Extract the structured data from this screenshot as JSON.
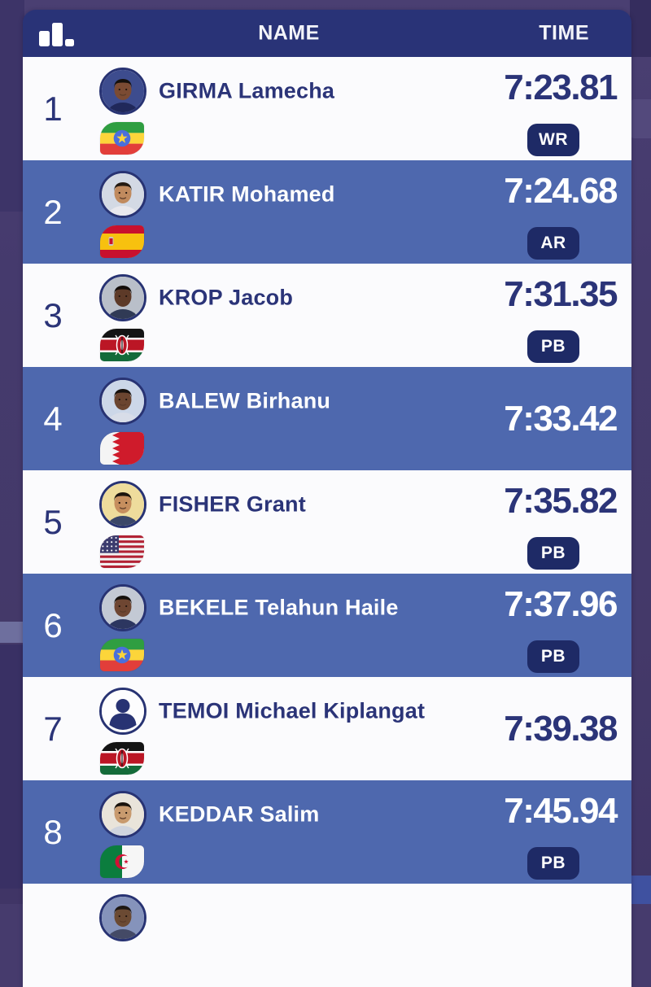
{
  "header": {
    "name_label": "NAME",
    "time_label": "TIME",
    "icon": "bar-chart-icon"
  },
  "rows": [
    {
      "rank": "1",
      "name": "GIRMA Lamecha",
      "time": "7:23.81",
      "badge": "WR",
      "flag": "ethiopia-flag",
      "style": "light",
      "avatar": "photo",
      "avatar_colors": {
        "bg": "#3d4c8e",
        "skin": "#7b4b33",
        "hair": "#15100c",
        "shirt": "#20285a"
      }
    },
    {
      "rank": "2",
      "name": "KATIR Mohamed",
      "time": "7:24.68",
      "badge": "AR",
      "flag": "spain-flag",
      "style": "dark",
      "avatar": "photo",
      "avatar_colors": {
        "bg": "#d3d9e4",
        "skin": "#c08a5e",
        "hair": "#241a12",
        "shirt": "#e8e8ee"
      }
    },
    {
      "rank": "3",
      "name": "KROP Jacob",
      "time": "7:31.35",
      "badge": "PB",
      "flag": "kenya-flag",
      "style": "light",
      "avatar": "photo",
      "avatar_colors": {
        "bg": "#b9bfc9",
        "skin": "#5d3a28",
        "hair": "#120d0a",
        "shirt": "#303a55"
      }
    },
    {
      "rank": "4",
      "name": "BALEW Birhanu",
      "time": "7:33.42",
      "badge": "",
      "flag": "bahrain-flag",
      "style": "dark",
      "avatar": "photo",
      "avatar_colors": {
        "bg": "#ccd7e8",
        "skin": "#6b4530",
        "hair": "#17110d",
        "shirt": "#d8dde8"
      }
    },
    {
      "rank": "5",
      "name": "FISHER Grant",
      "time": "7:35.82",
      "badge": "PB",
      "flag": "usa-flag",
      "style": "light",
      "avatar": "photo",
      "avatar_colors": {
        "bg": "#eedc9c",
        "skin": "#c68e5e",
        "hair": "#1c140e",
        "shirt": "#3a4668"
      }
    },
    {
      "rank": "6",
      "name": "BEKELE Telahun Haile",
      "time": "7:37.96",
      "badge": "PB",
      "flag": "ethiopia-flag",
      "style": "dark",
      "avatar": "photo",
      "avatar_colors": {
        "bg": "#c3c9d4",
        "skin": "#6e4632",
        "hair": "#14100c",
        "shirt": "#2c3660"
      }
    },
    {
      "rank": "7",
      "name": "TEMOI Michael Kiplangat",
      "time": "7:39.38",
      "badge": "",
      "flag": "kenya-flag",
      "style": "light",
      "avatar": "person-icon",
      "avatar_colors": {}
    },
    {
      "rank": "8",
      "name": "KEDDAR Salim",
      "time": "7:45.94",
      "badge": "PB",
      "flag": "algeria-flag",
      "style": "dark",
      "avatar": "photo",
      "avatar_colors": {
        "bg": "#e9e4da",
        "skin": "#c89a6e",
        "hair": "#1a130d",
        "shirt": "#cfd4de"
      }
    },
    {
      "rank": "",
      "name": "",
      "time": "",
      "badge": "",
      "flag": "",
      "style": "light",
      "partial": true,
      "avatar": "photo",
      "avatar_colors": {
        "bg": "#8593bb",
        "skin": "#6b4a33",
        "hair": "#1d1712",
        "shirt": "#444a66"
      }
    }
  ],
  "colors": {
    "header_bg": "#293377",
    "row_light_bg": "#fbfbfd",
    "row_dark_bg": "#4e68ae",
    "text_navy": "#2b3478",
    "badge_bg": "#1e2a66",
    "page_bg": "#463b6d",
    "white": "#ffffff"
  }
}
